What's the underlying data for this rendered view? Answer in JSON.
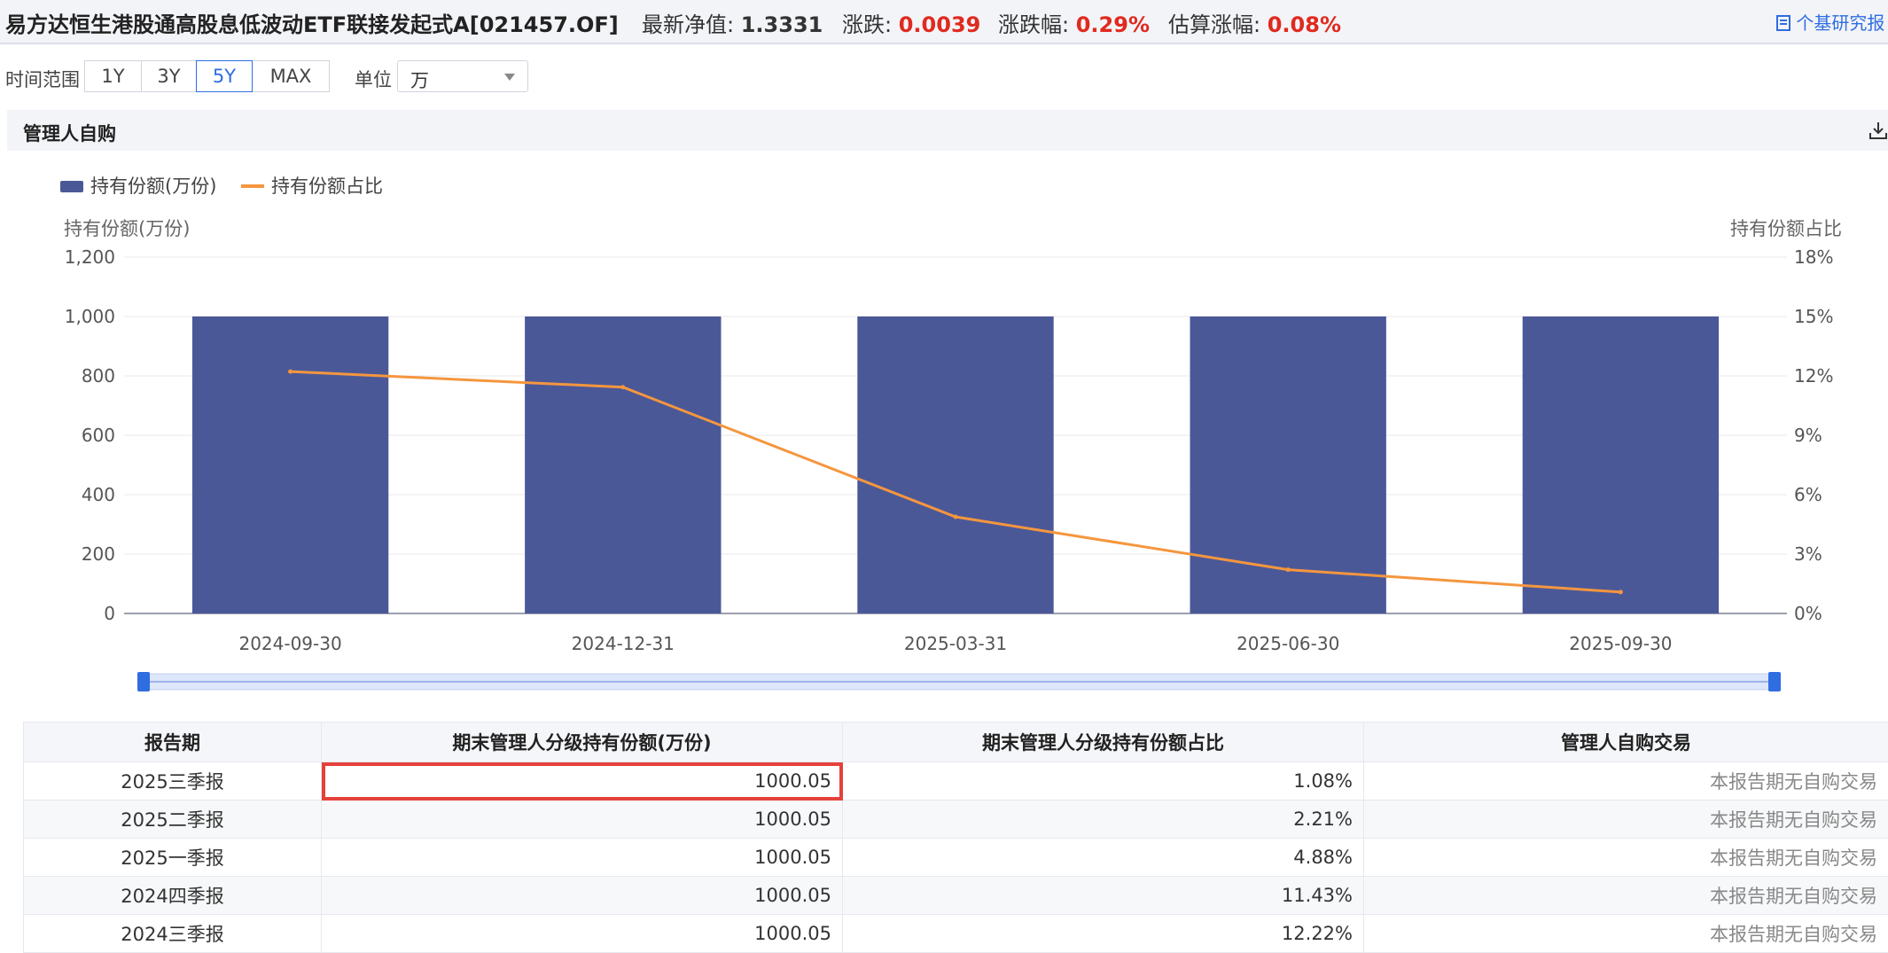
{
  "header": {
    "fund_title": "易方达恒生港股通高股息低波动ETF联接发起式A[021457.OF]",
    "nav_label": "最新净值:",
    "nav_value": "1.3331",
    "change_label": "涨跌:",
    "change_value": "0.0039",
    "change_pct_label": "涨跌幅:",
    "change_pct_value": "0.29%",
    "est_label": "估算涨幅:",
    "est_value": "0.08%",
    "report_link": "个基研究报"
  },
  "filters": {
    "range_label": "时间范围",
    "ranges": [
      "1Y",
      "3Y",
      "5Y",
      "MAX"
    ],
    "active_range": "5Y",
    "unit_label": "单位",
    "unit_value": "万"
  },
  "panel": {
    "title": "管理人自购"
  },
  "colors": {
    "bar": "#4b5898",
    "line": "#f5963e",
    "accent": "#2f6de1",
    "up_red": "#e02a1f"
  },
  "chart_data": {
    "type": "bar",
    "categories": [
      "2024-09-30",
      "2024-12-31",
      "2025-03-31",
      "2025-06-30",
      "2025-09-30"
    ],
    "series": [
      {
        "name": "持有份额(万份)",
        "type": "bar",
        "axis": "left",
        "values": [
          1000.05,
          1000.05,
          1000.05,
          1000.05,
          1000.05
        ]
      },
      {
        "name": "持有份额占比",
        "type": "line",
        "axis": "right",
        "values": [
          12.22,
          11.43,
          4.88,
          2.21,
          1.08
        ]
      }
    ],
    "ylabel_left": "持有份额(万份)",
    "ylabel_right": "持有份额占比",
    "ylim_left": [
      0,
      1200
    ],
    "ylim_right": [
      0,
      18
    ],
    "yticks_left": [
      "0",
      "200",
      "400",
      "600",
      "800",
      "1,000",
      "1,200"
    ],
    "yticks_right": [
      "0%",
      "3%",
      "6%",
      "9%",
      "12%",
      "15%",
      "18%"
    ],
    "legend_position": "top-left",
    "grid": true
  },
  "table": {
    "headers": [
      "报告期",
      "期末管理人分级持有份额(万份)",
      "期末管理人分级持有份额占比",
      "管理人自购交易"
    ],
    "rows": [
      [
        "2025三季报",
        "1000.05",
        "1.08%",
        "本报告期无自购交易"
      ],
      [
        "2025二季报",
        "1000.05",
        "2.21%",
        "本报告期无自购交易"
      ],
      [
        "2025一季报",
        "1000.05",
        "4.88%",
        "本报告期无自购交易"
      ],
      [
        "2024四季报",
        "1000.05",
        "11.43%",
        "本报告期无自购交易"
      ],
      [
        "2024三季报",
        "1000.05",
        "12.22%",
        "本报告期无自购交易"
      ]
    ]
  }
}
